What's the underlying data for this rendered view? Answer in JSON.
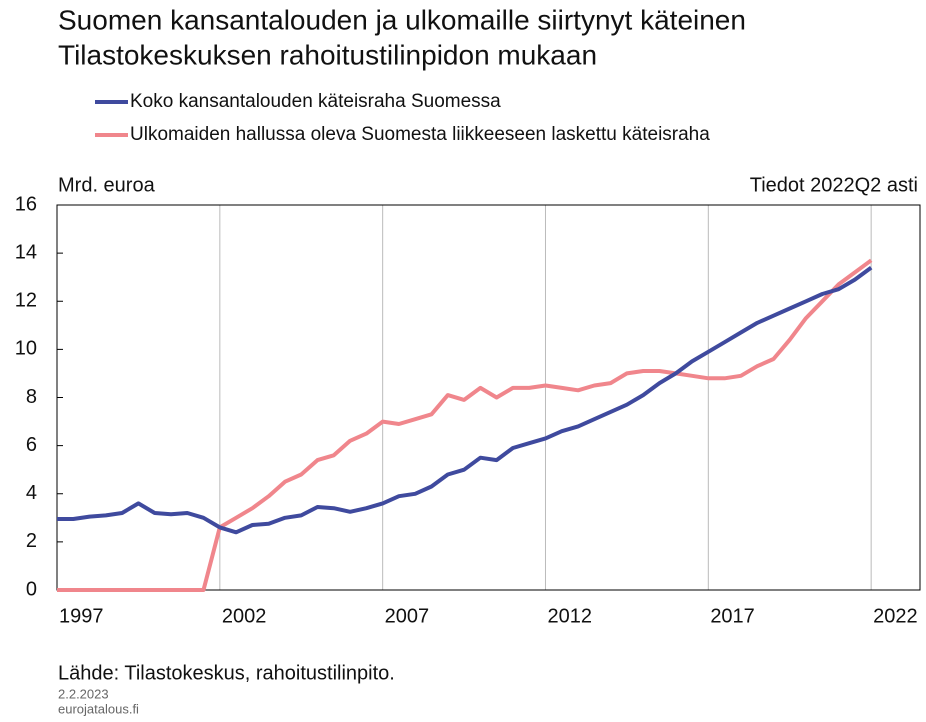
{
  "chart_data": {
    "type": "line",
    "title": [
      "Suomen kansantalouden ja ulkomaille siirtynyt käteinen",
      "Tilastokeskuksen rahoitustilinpidon mukaan"
    ],
    "y_label": "Mrd. euroa",
    "annotation": "Tiedot 2022Q2 asti",
    "source": "Lähde: Tilastokeskus, rahoitustilinpito.",
    "date": "2.2.2023",
    "site": "eurojatalous.fi",
    "x": [
      1997,
      1997.5,
      1998,
      1998.5,
      1999,
      1999.5,
      2000,
      2000.5,
      2001,
      2001.5,
      2002,
      2002.5,
      2003,
      2003.5,
      2004,
      2004.5,
      2005,
      2005.5,
      2006,
      2006.5,
      2007,
      2007.5,
      2008,
      2008.5,
      2009,
      2009.5,
      2010,
      2010.5,
      2011,
      2011.5,
      2012,
      2012.5,
      2013,
      2013.5,
      2014,
      2014.5,
      2015,
      2015.5,
      2016,
      2016.5,
      2017,
      2017.5,
      2018,
      2018.5,
      2019,
      2019.5,
      2020,
      2020.5,
      2021,
      2021.5,
      2022
    ],
    "series": [
      {
        "name": "Koko kansantalouden käteisraha Suomessa",
        "color": "#3f4a9e",
        "values": [
          2.95,
          2.95,
          3.05,
          3.1,
          3.2,
          3.6,
          3.2,
          3.15,
          3.2,
          3.0,
          2.6,
          2.4,
          2.7,
          2.75,
          3.0,
          3.1,
          3.45,
          3.4,
          3.25,
          3.4,
          3.6,
          3.9,
          4.0,
          4.3,
          4.8,
          5.0,
          5.5,
          5.4,
          5.9,
          6.1,
          6.3,
          6.6,
          6.8,
          7.1,
          7.4,
          7.7,
          8.1,
          8.6,
          9.0,
          9.5,
          9.9,
          10.3,
          10.7,
          11.1,
          11.4,
          11.7,
          12.0,
          12.3,
          12.5,
          12.9,
          13.4
        ]
      },
      {
        "name": "Ulkomaiden hallussa oleva Suomesta liikkeeseen laskettu käteisraha",
        "color": "#f0868c",
        "values": [
          0,
          0,
          0,
          0,
          0,
          0,
          0,
          0,
          0,
          0,
          2.6,
          3.0,
          3.4,
          3.9,
          4.5,
          4.8,
          5.4,
          5.6,
          6.2,
          6.5,
          7.0,
          6.9,
          7.1,
          7.3,
          8.1,
          7.9,
          8.4,
          8.0,
          8.4,
          8.4,
          8.5,
          8.4,
          8.3,
          8.5,
          8.6,
          9.0,
          9.1,
          9.1,
          9.0,
          8.9,
          8.8,
          8.8,
          8.9,
          9.3,
          9.6,
          10.4,
          11.3,
          12.0,
          12.7,
          13.2,
          13.7
        ]
      }
    ],
    "xlim": [
      1997,
      2023.5
    ],
    "xticks": [
      1997,
      2002,
      2007,
      2012,
      2017,
      2022
    ],
    "ylim": [
      0,
      16
    ],
    "yticks": [
      0,
      2,
      4,
      6,
      8,
      10,
      12,
      14,
      16
    ],
    "grid": "x",
    "legend": "top-left"
  }
}
